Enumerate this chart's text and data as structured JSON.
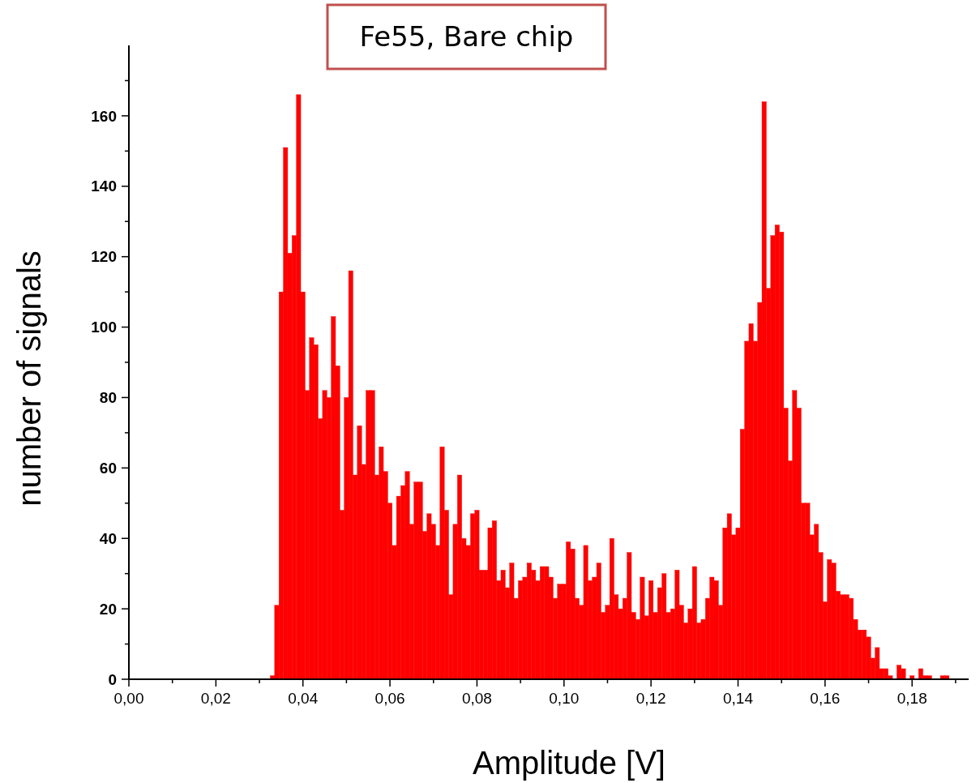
{
  "chart_data": {
    "type": "histogram",
    "title": "Fe55, Bare chip",
    "xlabel": "Amplitude [V]",
    "ylabel": "number of signals",
    "color": "#ff0000",
    "grid": false,
    "bins": [
      0.0325,
      0.0335,
      0.0345,
      0.0355,
      0.0365,
      0.0375,
      0.0385,
      0.0395,
      0.0405,
      0.0415,
      0.0425,
      0.0435,
      0.0445,
      0.0455,
      0.0465,
      0.0475,
      0.0485,
      0.0495,
      0.0505,
      0.0515,
      0.0525,
      0.0535,
      0.0545,
      0.0555,
      0.0565,
      0.0575,
      0.0585,
      0.0595,
      0.0605,
      0.0615,
      0.0625,
      0.0635,
      0.0645,
      0.0655,
      0.0665,
      0.0675,
      0.0685,
      0.0695,
      0.0705,
      0.0715,
      0.0725,
      0.0735,
      0.0745,
      0.0755,
      0.0765,
      0.0775,
      0.0785,
      0.0795,
      0.0805,
      0.0815,
      0.0825,
      0.0835,
      0.0845,
      0.0855,
      0.0865,
      0.0875,
      0.0885,
      0.0895,
      0.0905,
      0.0915,
      0.0925,
      0.0935,
      0.0945,
      0.0955,
      0.0965,
      0.0975,
      0.0985,
      0.0995,
      0.1005,
      0.1015,
      0.1025,
      0.1035,
      0.1045,
      0.1055,
      0.1065,
      0.1075,
      0.1085,
      0.1095,
      0.1105,
      0.1115,
      0.1125,
      0.1135,
      0.1145,
      0.1155,
      0.1165,
      0.1175,
      0.1185,
      0.1195,
      0.1205,
      0.1215,
      0.1225,
      0.1235,
      0.1245,
      0.1255,
      0.1265,
      0.1275,
      0.1285,
      0.1295,
      0.1305,
      0.1315,
      0.1325,
      0.1335,
      0.1345,
      0.1355,
      0.1365,
      0.1375,
      0.1385,
      0.1395,
      0.1405,
      0.1415,
      0.1425,
      0.1435,
      0.1445,
      0.1455,
      0.1465,
      0.1475,
      0.1485,
      0.1495,
      0.1505,
      0.1515,
      0.1525,
      0.1535,
      0.1545,
      0.1555,
      0.1565,
      0.1575,
      0.1585,
      0.1595,
      0.1605,
      0.1615,
      0.1625,
      0.1635,
      0.1645,
      0.1655,
      0.1665,
      0.1675,
      0.1685,
      0.1695,
      0.1705,
      0.1715,
      0.1725,
      0.1735,
      0.1745,
      0.1755,
      0.1765,
      0.1775,
      0.1785,
      0.1795,
      0.1805,
      0.1815,
      0.1825,
      0.1835,
      0.1845,
      0.1855,
      0.1865,
      0.1875,
      0.1885
    ],
    "values": [
      1,
      21,
      110,
      151,
      121,
      126,
      166,
      110,
      82,
      97,
      95,
      74,
      82,
      80,
      103,
      89,
      48,
      80,
      116,
      58,
      72,
      61,
      82,
      82,
      58,
      66,
      59,
      50,
      38,
      52,
      55,
      59,
      44,
      56,
      56,
      42,
      47,
      44,
      38,
      66,
      48,
      24,
      44,
      58,
      40,
      38,
      47,
      48,
      31,
      31,
      43,
      45,
      28,
      31,
      26,
      33,
      23,
      28,
      29,
      33,
      31,
      28,
      32,
      32,
      29,
      23,
      27,
      27,
      39,
      37,
      23,
      21,
      38,
      28,
      29,
      33,
      19,
      21,
      40,
      24,
      20,
      23,
      36,
      19,
      17,
      29,
      18,
      28,
      19,
      26,
      30,
      19,
      20,
      31,
      21,
      16,
      20,
      32,
      16,
      17,
      23,
      29,
      28,
      21,
      43,
      47,
      41,
      43,
      71,
      96,
      101,
      96,
      107,
      164,
      111,
      126,
      129,
      127,
      77,
      62,
      82,
      77,
      50,
      50,
      41,
      44,
      36,
      22,
      34,
      33,
      25,
      24,
      24,
      23,
      17,
      14,
      14,
      12,
      6,
      9,
      3,
      3,
      1,
      0,
      4,
      3,
      0,
      1,
      0,
      3,
      1,
      1,
      0,
      0,
      1,
      1
    ],
    "xlim": [
      0,
      0.193
    ],
    "ylim": [
      0,
      180
    ],
    "xticks": [
      {
        "value": 0,
        "label": "0,00"
      },
      {
        "value": 0.01,
        "label": null
      },
      {
        "value": 0.02,
        "label": "0,02"
      },
      {
        "value": 0.03,
        "label": null
      },
      {
        "value": 0.04,
        "label": "0,04"
      },
      {
        "value": 0.05,
        "label": null
      },
      {
        "value": 0.06,
        "label": "0,06"
      },
      {
        "value": 0.07,
        "label": null
      },
      {
        "value": 0.08,
        "label": "0,08"
      },
      {
        "value": 0.09,
        "label": null
      },
      {
        "value": 0.1,
        "label": "0,10"
      },
      {
        "value": 0.11,
        "label": null
      },
      {
        "value": 0.12,
        "label": "0,12"
      },
      {
        "value": 0.13,
        "label": null
      },
      {
        "value": 0.14,
        "label": "0,14"
      },
      {
        "value": 0.15,
        "label": null
      },
      {
        "value": 0.16,
        "label": "0,16"
      },
      {
        "value": 0.17,
        "label": null
      },
      {
        "value": 0.18,
        "label": "0,18"
      },
      {
        "value": 0.19,
        "label": null
      }
    ],
    "yticks": [
      0,
      {
        "value": 10,
        "label": null
      },
      20,
      {
        "value": 30,
        "label": null
      },
      40,
      {
        "value": 50,
        "label": null
      },
      60,
      {
        "value": 70,
        "label": null
      },
      80,
      {
        "value": 90,
        "label": null
      },
      100,
      {
        "value": 110,
        "label": null
      },
      120,
      {
        "value": 130,
        "label": null
      },
      140,
      {
        "value": 150,
        "label": null
      },
      160,
      {
        "value": 170,
        "label": null
      }
    ]
  }
}
